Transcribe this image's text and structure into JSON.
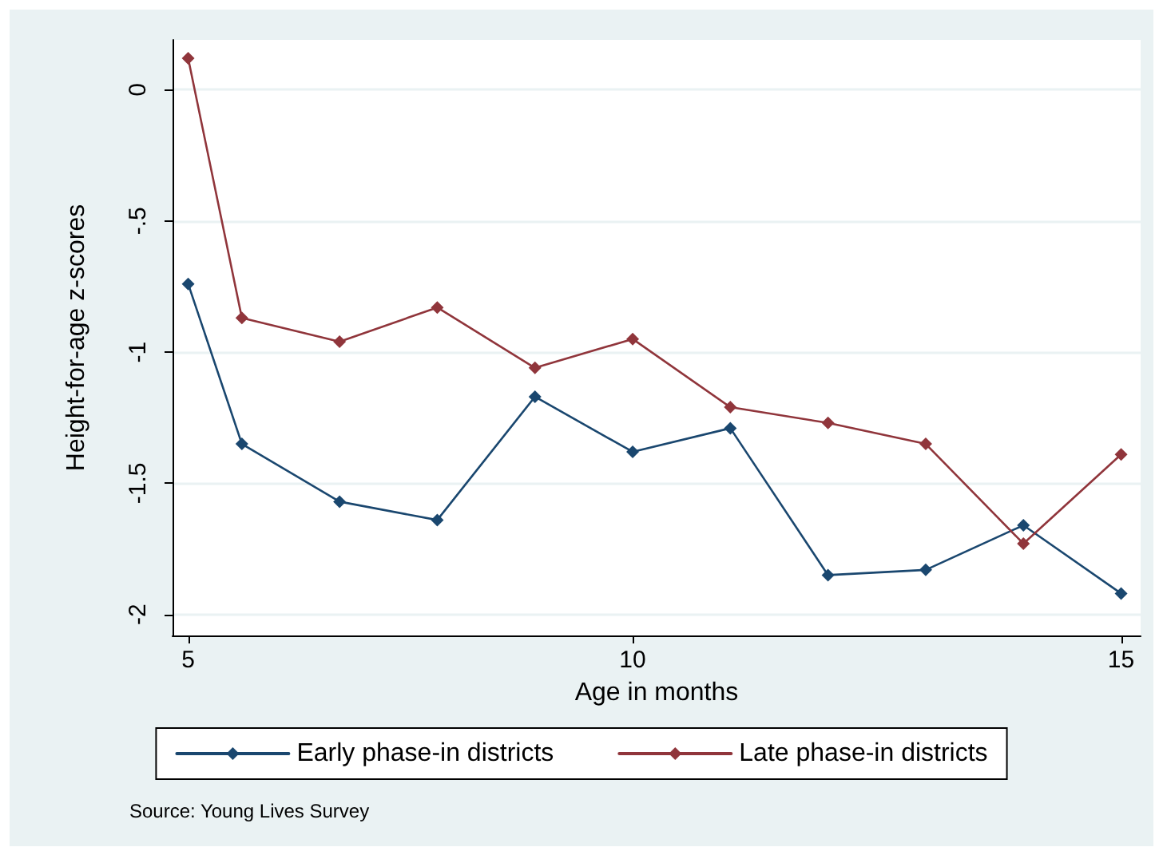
{
  "chart_data": {
    "type": "line",
    "xlabel": "Age in months",
    "ylabel": "Height-for-age z-scores",
    "x": [
      5.45,
      6,
      7,
      8,
      9,
      10,
      11,
      12,
      13,
      14,
      15
    ],
    "series": [
      {
        "name": "Early phase-in districts",
        "color": "#1a476f",
        "values": [
          -0.74,
          -1.35,
          -1.57,
          -1.64,
          -1.17,
          -1.38,
          -1.29,
          -1.85,
          -1.83,
          -1.66,
          -1.92
        ]
      },
      {
        "name": "Late phase-in districts",
        "color": "#90353b",
        "values": [
          0.12,
          -0.87,
          -0.96,
          -0.83,
          -1.06,
          -0.95,
          -1.21,
          -1.27,
          -1.35,
          -1.73,
          -1.39
        ]
      }
    ],
    "xlim": [
      5.29,
      15.2
    ],
    "xticks": [
      {
        "value": 5.45,
        "label": "5"
      },
      10,
      15
    ],
    "ylim": [
      -2.08,
      0.19
    ],
    "yticks": [
      0,
      {
        "value": -0.5,
        "label": "-.5"
      },
      -1,
      -1.5,
      -2
    ],
    "grid": "y",
    "legend": "bottom",
    "marker": "diamond",
    "line_style": "solid",
    "annotations": [
      "Source: Young Lives Survey"
    ]
  }
}
